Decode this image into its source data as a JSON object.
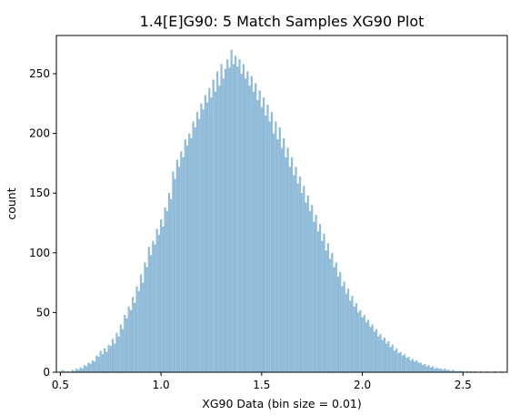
{
  "chart_data": {
    "type": "bar",
    "title": "1.4[E]G90: 5 Match Samples XG90 Plot",
    "xlabel": "XG90 Data (bin size = 0.01)",
    "ylabel": "count",
    "bin_size": 0.01,
    "xlim": [
      0.48,
      2.72
    ],
    "ylim": [
      0,
      282
    ],
    "xticks": [
      0.5,
      1.0,
      1.5,
      2.0,
      2.5
    ],
    "xtick_labels": [
      "0.5",
      "1.0",
      "1.5",
      "2.0",
      "2.5"
    ],
    "yticks": [
      0,
      50,
      100,
      150,
      200,
      250
    ],
    "ytick_labels": [
      "0",
      "50",
      "100",
      "150",
      "200",
      "250"
    ],
    "bar_color": "#8fbbd9",
    "grid": false,
    "legend": "none",
    "bins": [
      [
        0.51,
        2
      ],
      [
        0.52,
        1
      ],
      [
        0.53,
        0
      ],
      [
        0.54,
        1
      ],
      [
        0.55,
        0
      ],
      [
        0.56,
        2
      ],
      [
        0.57,
        1
      ],
      [
        0.58,
        3
      ],
      [
        0.59,
        2
      ],
      [
        0.6,
        4
      ],
      [
        0.61,
        3
      ],
      [
        0.62,
        6
      ],
      [
        0.63,
        5
      ],
      [
        0.64,
        8
      ],
      [
        0.65,
        7
      ],
      [
        0.66,
        10
      ],
      [
        0.67,
        9
      ],
      [
        0.68,
        14
      ],
      [
        0.69,
        13
      ],
      [
        0.7,
        18
      ],
      [
        0.71,
        15
      ],
      [
        0.72,
        20
      ],
      [
        0.73,
        17
      ],
      [
        0.74,
        23
      ],
      [
        0.75,
        22
      ],
      [
        0.76,
        28
      ],
      [
        0.77,
        24
      ],
      [
        0.78,
        33
      ],
      [
        0.79,
        30
      ],
      [
        0.8,
        40
      ],
      [
        0.81,
        36
      ],
      [
        0.82,
        48
      ],
      [
        0.83,
        45
      ],
      [
        0.84,
        55
      ],
      [
        0.85,
        52
      ],
      [
        0.86,
        63
      ],
      [
        0.87,
        58
      ],
      [
        0.88,
        72
      ],
      [
        0.89,
        68
      ],
      [
        0.9,
        82
      ],
      [
        0.91,
        75
      ],
      [
        0.92,
        92
      ],
      [
        0.93,
        88
      ],
      [
        0.94,
        105
      ],
      [
        0.95,
        98
      ],
      [
        0.96,
        110
      ],
      [
        0.97,
        107
      ],
      [
        0.98,
        120
      ],
      [
        0.99,
        115
      ],
      [
        1.0,
        128
      ],
      [
        1.01,
        122
      ],
      [
        1.02,
        138
      ],
      [
        1.03,
        135
      ],
      [
        1.04,
        150
      ],
      [
        1.05,
        145
      ],
      [
        1.06,
        168
      ],
      [
        1.07,
        162
      ],
      [
        1.08,
        178
      ],
      [
        1.09,
        172
      ],
      [
        1.1,
        185
      ],
      [
        1.11,
        180
      ],
      [
        1.12,
        195
      ],
      [
        1.13,
        190
      ],
      [
        1.14,
        200
      ],
      [
        1.15,
        196
      ],
      [
        1.16,
        210
      ],
      [
        1.17,
        205
      ],
      [
        1.18,
        218
      ],
      [
        1.19,
        212
      ],
      [
        1.2,
        225
      ],
      [
        1.21,
        220
      ],
      [
        1.22,
        232
      ],
      [
        1.23,
        226
      ],
      [
        1.24,
        238
      ],
      [
        1.25,
        230
      ],
      [
        1.26,
        245
      ],
      [
        1.27,
        235
      ],
      [
        1.28,
        252
      ],
      [
        1.29,
        240
      ],
      [
        1.3,
        258
      ],
      [
        1.31,
        246
      ],
      [
        1.32,
        254
      ],
      [
        1.33,
        262
      ],
      [
        1.34,
        255
      ],
      [
        1.35,
        270
      ],
      [
        1.36,
        258
      ],
      [
        1.37,
        265
      ],
      [
        1.38,
        256
      ],
      [
        1.39,
        262
      ],
      [
        1.4,
        250
      ],
      [
        1.41,
        258
      ],
      [
        1.42,
        246
      ],
      [
        1.43,
        252
      ],
      [
        1.44,
        240
      ],
      [
        1.45,
        248
      ],
      [
        1.46,
        235
      ],
      [
        1.47,
        242
      ],
      [
        1.48,
        228
      ],
      [
        1.49,
        236
      ],
      [
        1.5,
        222
      ],
      [
        1.51,
        230
      ],
      [
        1.52,
        215
      ],
      [
        1.53,
        224
      ],
      [
        1.54,
        210
      ],
      [
        1.55,
        218
      ],
      [
        1.56,
        200
      ],
      [
        1.57,
        210
      ],
      [
        1.58,
        195
      ],
      [
        1.59,
        205
      ],
      [
        1.6,
        188
      ],
      [
        1.61,
        196
      ],
      [
        1.62,
        180
      ],
      [
        1.63,
        188
      ],
      [
        1.64,
        172
      ],
      [
        1.65,
        180
      ],
      [
        1.66,
        165
      ],
      [
        1.67,
        172
      ],
      [
        1.68,
        158
      ],
      [
        1.69,
        164
      ],
      [
        1.7,
        150
      ],
      [
        1.71,
        156
      ],
      [
        1.72,
        142
      ],
      [
        1.73,
        148
      ],
      [
        1.74,
        135
      ],
      [
        1.75,
        140
      ],
      [
        1.76,
        126
      ],
      [
        1.77,
        132
      ],
      [
        1.78,
        118
      ],
      [
        1.79,
        124
      ],
      [
        1.8,
        110
      ],
      [
        1.81,
        116
      ],
      [
        1.82,
        102
      ],
      [
        1.83,
        108
      ],
      [
        1.84,
        95
      ],
      [
        1.85,
        100
      ],
      [
        1.86,
        88
      ],
      [
        1.87,
        92
      ],
      [
        1.88,
        80
      ],
      [
        1.89,
        84
      ],
      [
        1.9,
        72
      ],
      [
        1.91,
        76
      ],
      [
        1.92,
        66
      ],
      [
        1.93,
        70
      ],
      [
        1.94,
        60
      ],
      [
        1.95,
        64
      ],
      [
        1.96,
        55
      ],
      [
        1.97,
        58
      ],
      [
        1.98,
        50
      ],
      [
        1.99,
        52
      ],
      [
        2.0,
        46
      ],
      [
        2.01,
        48
      ],
      [
        2.02,
        42
      ],
      [
        2.03,
        44
      ],
      [
        2.04,
        38
      ],
      [
        2.05,
        40
      ],
      [
        2.06,
        34
      ],
      [
        2.07,
        36
      ],
      [
        2.08,
        30
      ],
      [
        2.09,
        32
      ],
      [
        2.1,
        27
      ],
      [
        2.11,
        29
      ],
      [
        2.12,
        24
      ],
      [
        2.13,
        26
      ],
      [
        2.14,
        21
      ],
      [
        2.15,
        23
      ],
      [
        2.16,
        18
      ],
      [
        2.17,
        20
      ],
      [
        2.18,
        16
      ],
      [
        2.19,
        17
      ],
      [
        2.2,
        14
      ],
      [
        2.21,
        15
      ],
      [
        2.22,
        12
      ],
      [
        2.23,
        13
      ],
      [
        2.24,
        10
      ],
      [
        2.25,
        11
      ],
      [
        2.26,
        9
      ],
      [
        2.27,
        10
      ],
      [
        2.28,
        8
      ],
      [
        2.29,
        8
      ],
      [
        2.3,
        6
      ],
      [
        2.31,
        7
      ],
      [
        2.32,
        5
      ],
      [
        2.33,
        6
      ],
      [
        2.34,
        4
      ],
      [
        2.35,
        5
      ],
      [
        2.36,
        3
      ],
      [
        2.37,
        4
      ],
      [
        2.38,
        3
      ],
      [
        2.39,
        3
      ],
      [
        2.4,
        2
      ],
      [
        2.41,
        3
      ],
      [
        2.42,
        2
      ],
      [
        2.43,
        2
      ],
      [
        2.44,
        1
      ],
      [
        2.45,
        2
      ],
      [
        2.46,
        1
      ],
      [
        2.47,
        1
      ],
      [
        2.48,
        1
      ],
      [
        2.49,
        1
      ],
      [
        2.5,
        1
      ],
      [
        2.51,
        0
      ],
      [
        2.52,
        1
      ],
      [
        2.53,
        0
      ],
      [
        2.54,
        1
      ],
      [
        2.55,
        0
      ],
      [
        2.56,
        1
      ],
      [
        2.57,
        0
      ],
      [
        2.58,
        0
      ],
      [
        2.59,
        1
      ],
      [
        2.6,
        0
      ],
      [
        2.61,
        0
      ],
      [
        2.62,
        1
      ],
      [
        2.63,
        0
      ],
      [
        2.64,
        0
      ],
      [
        2.65,
        0
      ],
      [
        2.66,
        1
      ],
      [
        2.67,
        0
      ],
      [
        2.68,
        0
      ],
      [
        2.69,
        1
      ],
      [
        2.7,
        0
      ]
    ]
  }
}
